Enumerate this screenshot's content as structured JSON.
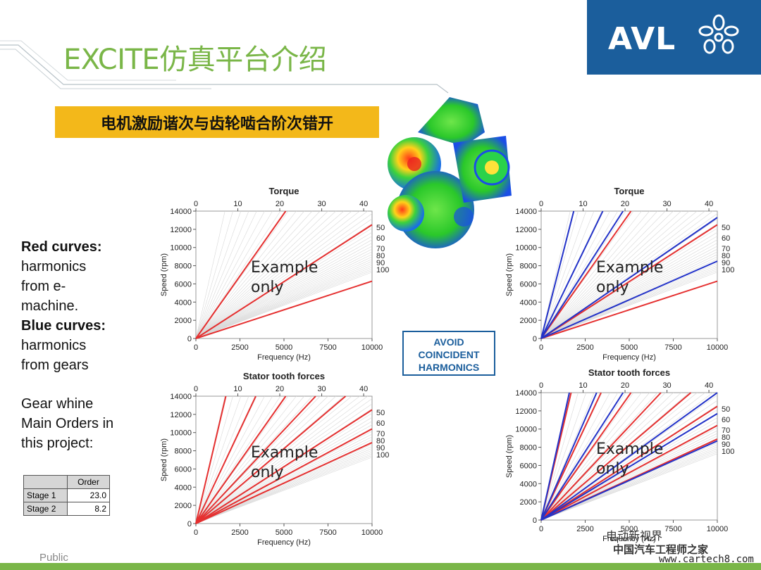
{
  "slide": {
    "title": "EXCITE仿真平台介绍",
    "banner": "电机激励谐次与齿轮啮合阶次错开",
    "footer": "Public",
    "logo_text": "AVL",
    "watermark": "电动新视界",
    "watermark_cn": "中国汽车工程师之家",
    "watermark_url": "www.cartech8.com",
    "colors": {
      "title": "#7ab648",
      "logo_bg": "#1b5e9c",
      "banner": "#f3b81a",
      "red_curve": "#e53030",
      "blue_curve": "#2232c8"
    }
  },
  "notes": {
    "red_heading": "Red curves:",
    "red_lines": [
      "harmonics",
      "from e-",
      "machine."
    ],
    "blue_heading": "Blue curves:",
    "blue_lines": [
      "harmonics",
      "from gears"
    ]
  },
  "gear_whine": {
    "lines": [
      "Gear whine",
      "Main Orders in",
      "this project:"
    ]
  },
  "order_table": {
    "header": "Order",
    "rows": [
      {
        "label": "Stage 1",
        "value": "23.0"
      },
      {
        "label": "Stage 2",
        "value": "8.2"
      }
    ]
  },
  "avoid_box": {
    "lines": [
      "AVOID",
      "COINCIDENT",
      "HARMONICS"
    ]
  },
  "chart_data": [
    {
      "type": "line",
      "title": "Torque",
      "xlabel": "Frequency (Hz)",
      "ylabel": "Speed (rpm)",
      "xlim": [
        0,
        10000
      ],
      "ylim": [
        0,
        14000
      ],
      "x_ticks": [
        "0",
        "2500",
        "5000",
        "7500",
        "10000"
      ],
      "y_ticks": [
        "0",
        "2000",
        "4000",
        "6000",
        "8000",
        "10000",
        "12000",
        "14000"
      ],
      "top_ticks": [
        "0",
        "10",
        "20",
        "30",
        "40"
      ],
      "right_labels": [
        "50",
        "60",
        "70",
        "80",
        "90",
        "100"
      ],
      "annotation": [
        "Example",
        "only"
      ],
      "red_end_freq": [
        5100,
        10000,
        10000
      ],
      "red_end_speed": [
        14000,
        12500,
        6300
      ],
      "blue_end_freq": [],
      "blue_end_speed": []
    },
    {
      "type": "line",
      "title": "Torque",
      "xlabel": "Frequency (Hz)",
      "ylabel": "Speed (rpm)",
      "xlim": [
        0,
        10000
      ],
      "ylim": [
        0,
        14000
      ],
      "x_ticks": [
        "0",
        "2500",
        "5000",
        "7500",
        "10000"
      ],
      "y_ticks": [
        "0",
        "2000",
        "4000",
        "6000",
        "8000",
        "10000",
        "12000",
        "14000"
      ],
      "top_ticks": [
        "0",
        "10",
        "20",
        "30",
        "40"
      ],
      "right_labels": [
        "50",
        "60",
        "70",
        "80",
        "90",
        "100"
      ],
      "annotation": [
        "Example",
        "only"
      ],
      "red_end_freq": [
        5100,
        10000,
        10000
      ],
      "red_end_speed": [
        14000,
        12500,
        6300
      ],
      "blue_end_freq": [
        1850,
        3500,
        4650,
        10000,
        10000
      ],
      "blue_end_speed": [
        14000,
        14000,
        14000,
        13300,
        8500
      ]
    },
    {
      "type": "line",
      "title": "Stator tooth forces",
      "xlabel": "Frequency (Hz)",
      "ylabel": "Speed (rpm)",
      "xlim": [
        0,
        10000
      ],
      "ylim": [
        0,
        14000
      ],
      "x_ticks": [
        "0",
        "2500",
        "5000",
        "7500",
        "10000"
      ],
      "y_ticks": [
        "0",
        "2000",
        "4000",
        "6000",
        "8000",
        "10000",
        "12000",
        "14000"
      ],
      "top_ticks": [
        "0",
        "10",
        "20",
        "30",
        "40"
      ],
      "right_labels": [
        "50",
        "60",
        "70",
        "80",
        "90",
        "100"
      ],
      "annotation": [
        "Example",
        "only"
      ],
      "red_end_freq": [
        1700,
        3400,
        5100,
        6800,
        8500,
        10000,
        10000,
        10000
      ],
      "red_end_speed": [
        14000,
        14000,
        14000,
        14000,
        14000,
        12500,
        10400,
        8900
      ],
      "blue_end_freq": [],
      "blue_end_speed": []
    },
    {
      "type": "line",
      "title": "Stator tooth forces",
      "xlabel": "Frequency (Hz)",
      "ylabel": "Speed (rpm)",
      "xlim": [
        0,
        10000
      ],
      "ylim": [
        0,
        14000
      ],
      "x_ticks": [
        "0",
        "2500",
        "5000",
        "7500",
        "10000"
      ],
      "y_ticks": [
        "0",
        "2000",
        "4000",
        "6000",
        "8000",
        "10000",
        "12000",
        "14000"
      ],
      "top_ticks": [
        "0",
        "10",
        "20",
        "30",
        "40"
      ],
      "right_labels": [
        "50",
        "60",
        "70",
        "80",
        "90",
        "100"
      ],
      "annotation": [
        "Example",
        "only"
      ],
      "red_end_freq": [
        1700,
        3400,
        5100,
        6800,
        8500,
        10000,
        10000,
        10000
      ],
      "red_end_speed": [
        14000,
        14000,
        14000,
        14000,
        14000,
        12500,
        10400,
        8900
      ],
      "blue_end_freq": [
        1600,
        3150,
        4650,
        10000,
        10000,
        10000
      ],
      "blue_end_speed": [
        14000,
        14000,
        14000,
        14000,
        11700,
        8700
      ]
    }
  ]
}
